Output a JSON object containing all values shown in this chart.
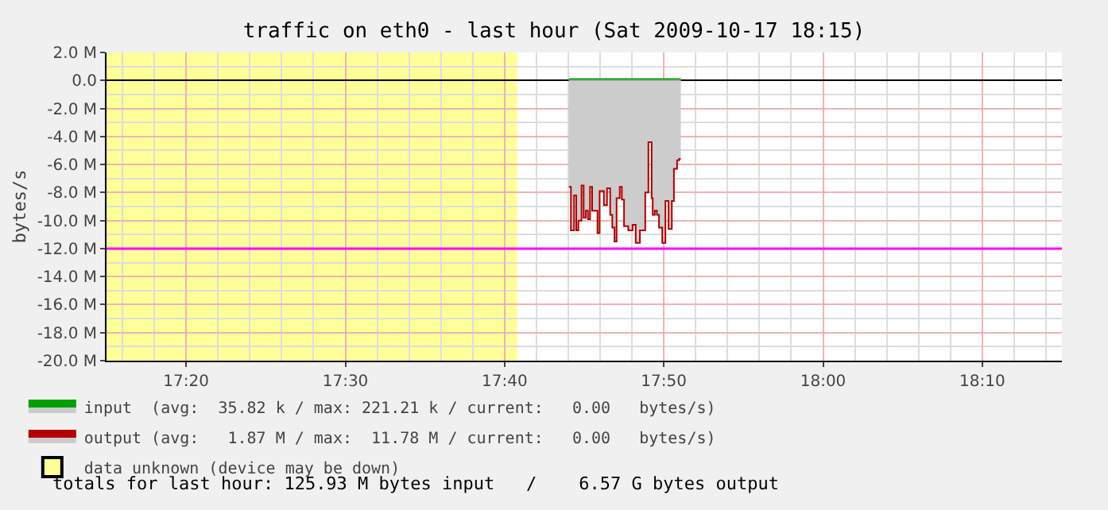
{
  "chart_data": {
    "type": "area",
    "title": "traffic on eth0 - last hour (Sat 2009-10-17 18:15)",
    "ylabel": "bytes/s",
    "xlim": [
      17.25,
      18.25
    ],
    "xticks": [
      {
        "value": 17.3333,
        "label": "17:20"
      },
      {
        "value": 17.5,
        "label": "17:30"
      },
      {
        "value": 17.6667,
        "label": "17:40"
      },
      {
        "value": 17.8333,
        "label": "17:50"
      },
      {
        "value": 18,
        "label": "18:00"
      },
      {
        "value": 18.1667,
        "label": "18:10"
      }
    ],
    "ylim": [
      -20,
      2
    ],
    "yticks": [
      {
        "value": 2,
        "label": "2.0 M"
      },
      {
        "value": 0,
        "label": "0.0"
      },
      {
        "value": -2,
        "label": "-2.0 M"
      },
      {
        "value": -4,
        "label": "-4.0 M"
      },
      {
        "value": -6,
        "label": "-6.0 M"
      },
      {
        "value": -8,
        "label": "-8.0 M"
      },
      {
        "value": -10,
        "label": "-10.0 M"
      },
      {
        "value": -12,
        "label": "-12.0 M"
      },
      {
        "value": -14,
        "label": "-14.0 M"
      },
      {
        "value": -16,
        "label": "-16.0 M"
      },
      {
        "value": -18,
        "label": "-18.0 M"
      },
      {
        "value": -20,
        "label": "-20.0 M"
      }
    ],
    "series": [
      {
        "name": "input  (avg:  35.82 k / max: 221.21 k / current:   0.00   bytes/s)",
        "color": "#00a000",
        "x": [
          17.7339,
          17.7617,
          17.7894,
          17.8172,
          17.8511
        ],
        "values": [
          0.1,
          0.1,
          0.1,
          0.1,
          0.1
        ]
      },
      {
        "name": "output (avg:   1.87 M / max:  11.78 M / current:   0.00   bytes/s)",
        "color": "#b00000",
        "x": [
          17.7339,
          17.7361,
          17.7394,
          17.7417,
          17.7439,
          17.7472,
          17.7494,
          17.7517,
          17.7539,
          17.7561,
          17.7583,
          17.7617,
          17.7639,
          17.7661,
          17.7706,
          17.7739,
          17.7772,
          17.7794,
          17.7817,
          17.7839,
          17.7872,
          17.7894,
          17.7917,
          17.7961,
          17.8006,
          17.8039,
          17.8083,
          17.8117,
          17.8139,
          17.8172,
          17.8206,
          17.8217,
          17.8239,
          17.8261,
          17.8283,
          17.8317,
          17.835,
          17.8383,
          17.8417,
          17.8439,
          17.8472,
          17.8494,
          17.8511
        ],
        "values": [
          -7.6,
          -10.7,
          -8.2,
          -10.7,
          -10.0,
          -7.5,
          -9.8,
          -9.3,
          -9.9,
          -7.6,
          -9.3,
          -9.3,
          -10.9,
          -7.9,
          -8.9,
          -7.7,
          -9.6,
          -10.5,
          -11.5,
          -8.4,
          -7.6,
          -8.5,
          -10.4,
          -10.7,
          -10.3,
          -11.6,
          -10.7,
          -10.7,
          -8.0,
          -4.4,
          -8.4,
          -9.6,
          -9.3,
          -9.6,
          -10.5,
          -11.6,
          -8.6,
          -10.6,
          -8.6,
          -6.3,
          -5.7,
          -5.6,
          -5.6
        ]
      }
    ],
    "bands": [
      {
        "axis": "x",
        "from": 17.25,
        "to": 17.68,
        "label": "data unknown (device may be down)",
        "color": "#ffff99"
      }
    ],
    "ref_lines": [
      {
        "axis": "y",
        "value": -12,
        "color": "#ff00ff"
      }
    ],
    "annotations": [
      "totals for last hour: 125.93 M bytes input   /    6.57 G bytes output"
    ],
    "grid": true,
    "legend": "bottom"
  }
}
